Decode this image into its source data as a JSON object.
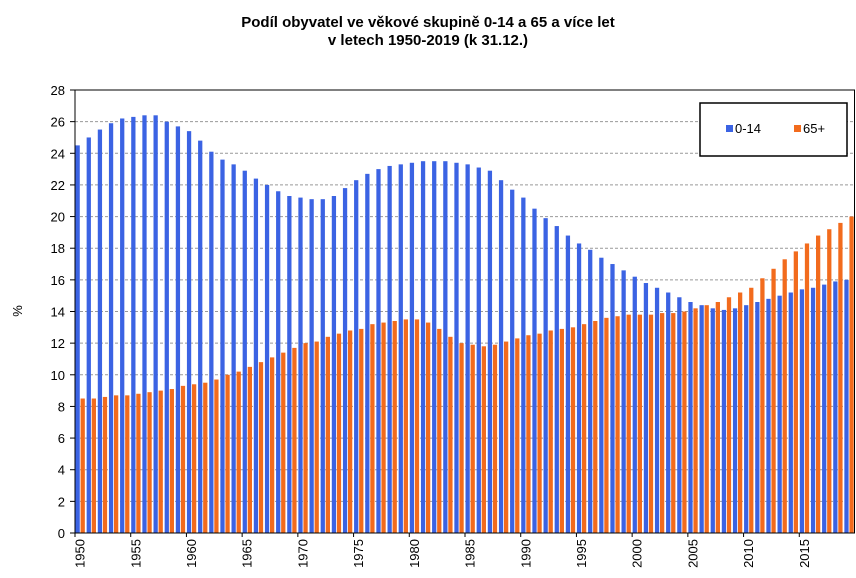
{
  "chart_data": {
    "type": "bar",
    "title": [
      "Podíl obyvatel ve věkové skupině 0-14 a 65 a více let",
      "v letech 1950-2019 (k 31.12.)"
    ],
    "ylabel": "%",
    "categories": [
      "1950",
      null,
      null,
      null,
      null,
      "1955",
      null,
      null,
      null,
      null,
      "1960",
      null,
      null,
      null,
      null,
      "1965",
      null,
      null,
      null,
      null,
      "1970",
      null,
      null,
      null,
      null,
      "1975",
      null,
      null,
      null,
      null,
      "1980",
      null,
      null,
      null,
      null,
      "1985",
      null,
      null,
      null,
      null,
      "1990",
      null,
      null,
      null,
      null,
      "1995",
      null,
      null,
      null,
      null,
      "2000",
      null,
      null,
      null,
      null,
      "2005",
      null,
      null,
      null,
      null,
      "2010",
      null,
      null,
      null,
      null,
      "2015",
      null,
      null,
      null,
      null
    ],
    "series": [
      {
        "name": "0-14",
        "color": "#3b63e3",
        "values": [
          24.5,
          25.0,
          25.5,
          25.9,
          26.2,
          26.3,
          26.4,
          26.4,
          26.0,
          25.7,
          25.4,
          24.8,
          24.1,
          23.6,
          23.3,
          22.9,
          22.4,
          22.0,
          21.6,
          21.3,
          21.2,
          21.1,
          21.1,
          21.3,
          21.8,
          22.3,
          22.7,
          23.0,
          23.2,
          23.3,
          23.4,
          23.5,
          23.5,
          23.5,
          23.4,
          23.3,
          23.1,
          22.9,
          22.3,
          21.7,
          21.2,
          20.5,
          19.9,
          19.4,
          18.8,
          18.3,
          17.9,
          17.4,
          17.0,
          16.6,
          16.2,
          15.8,
          15.5,
          15.2,
          14.9,
          14.6,
          14.4,
          14.2,
          14.1,
          14.2,
          14.4,
          14.6,
          14.8,
          15.0,
          15.2,
          15.4,
          15.5,
          15.7,
          15.9,
          16.0
        ]
      },
      {
        "name": "65+",
        "color": "#f26b1d",
        "values": [
          8.5,
          8.5,
          8.6,
          8.7,
          8.7,
          8.8,
          8.9,
          9.0,
          9.1,
          9.3,
          9.4,
          9.5,
          9.7,
          10.0,
          10.2,
          10.5,
          10.8,
          11.1,
          11.4,
          11.7,
          12.0,
          12.1,
          12.4,
          12.6,
          12.8,
          12.9,
          13.2,
          13.3,
          13.4,
          13.5,
          13.5,
          13.3,
          12.9,
          12.4,
          12.0,
          11.9,
          11.8,
          11.9,
          12.1,
          12.3,
          12.5,
          12.6,
          12.8,
          12.9,
          13.0,
          13.2,
          13.4,
          13.6,
          13.7,
          13.8,
          13.8,
          13.8,
          13.9,
          13.9,
          14.0,
          14.2,
          14.4,
          14.6,
          14.9,
          15.2,
          15.5,
          16.1,
          16.7,
          17.3,
          17.8,
          18.3,
          18.8,
          19.2,
          19.6,
          20.0
        ]
      }
    ],
    "ylim": [
      0,
      28
    ],
    "yticks": [
      0,
      2,
      4,
      6,
      8,
      10,
      12,
      14,
      16,
      18,
      20,
      22,
      24,
      26,
      28
    ],
    "grid": true,
    "legend": "top-right"
  }
}
